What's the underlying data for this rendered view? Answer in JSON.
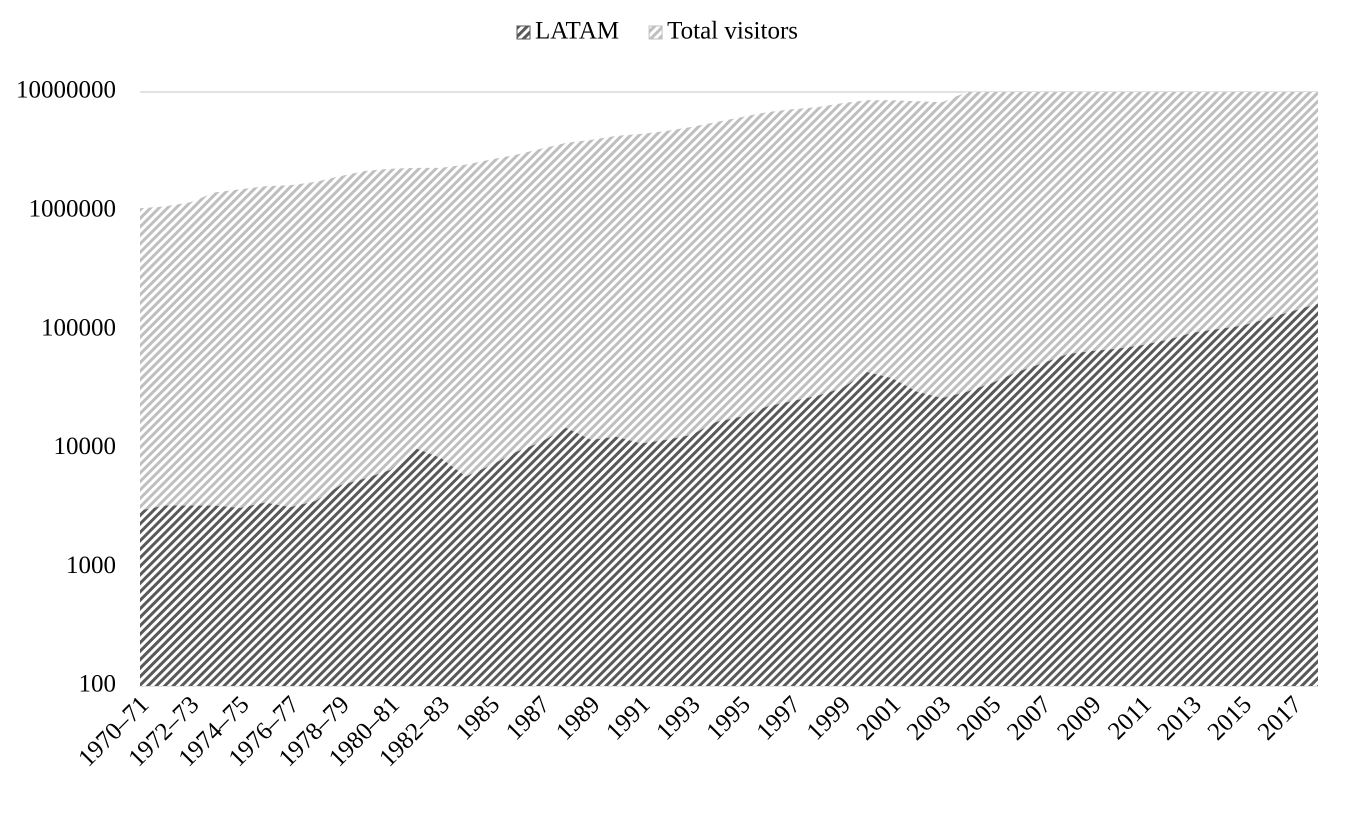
{
  "chart_data": {
    "type": "area",
    "categories": [
      "1970–71",
      null,
      "1972–73",
      null,
      "1974–75",
      null,
      "1976–77",
      null,
      "1978–79",
      null,
      "1980–81",
      null,
      "1982–83",
      null,
      "1985",
      null,
      "1987",
      null,
      "1989",
      null,
      "1991",
      null,
      "1993",
      null,
      "1995",
      null,
      "1997",
      null,
      "1999",
      null,
      "2001",
      null,
      "2003",
      null,
      "2005",
      null,
      "2007",
      null,
      "2009",
      null,
      "2011",
      null,
      "2013",
      null,
      "2015",
      null,
      "2017",
      null
    ],
    "series": [
      {
        "name": "Total visitors",
        "color": "#bfbfbf",
        "values": [
          1050000,
          1090000,
          1180000,
          1430000,
          1520000,
          1610000,
          1640000,
          1750000,
          1960000,
          2170000,
          2260000,
          2300000,
          2300000,
          2450000,
          2700000,
          2960000,
          3330000,
          3730000,
          3950000,
          4270000,
          4440000,
          4700000,
          5080000,
          5590000,
          6150000,
          6760000,
          7160000,
          7450000,
          8040000,
          8520000,
          8520000,
          8350000,
          8200000,
          10000000,
          10000000,
          10000000,
          10000000,
          10000000,
          10000000,
          10000000,
          10000000,
          10000000,
          10000000,
          10000000,
          10000000,
          10000000,
          10000000,
          10000000
        ]
      },
      {
        "name": "LATAM",
        "color": "#595959",
        "values": [
          3000,
          3300,
          3300,
          3300,
          3150,
          3500,
          3200,
          3600,
          4900,
          5600,
          6600,
          10000,
          8300,
          5800,
          7200,
          9300,
          11300,
          14900,
          11800,
          12500,
          11000,
          11800,
          13000,
          16700,
          18500,
          22400,
          25000,
          27600,
          32000,
          44000,
          39000,
          30000,
          26500,
          30000,
          35500,
          44000,
          52000,
          62000,
          66000,
          69000,
          74000,
          82000,
          94000,
          101000,
          108000,
          124000,
          143000,
          165000
        ]
      }
    ],
    "legend_order": [
      "LATAM",
      "Total visitors"
    ],
    "ylim": [
      100,
      10000000
    ],
    "yticks": [
      100,
      1000,
      10000,
      100000,
      1000000,
      10000000
    ],
    "yscale": "log",
    "grid": true,
    "legend": "top"
  }
}
